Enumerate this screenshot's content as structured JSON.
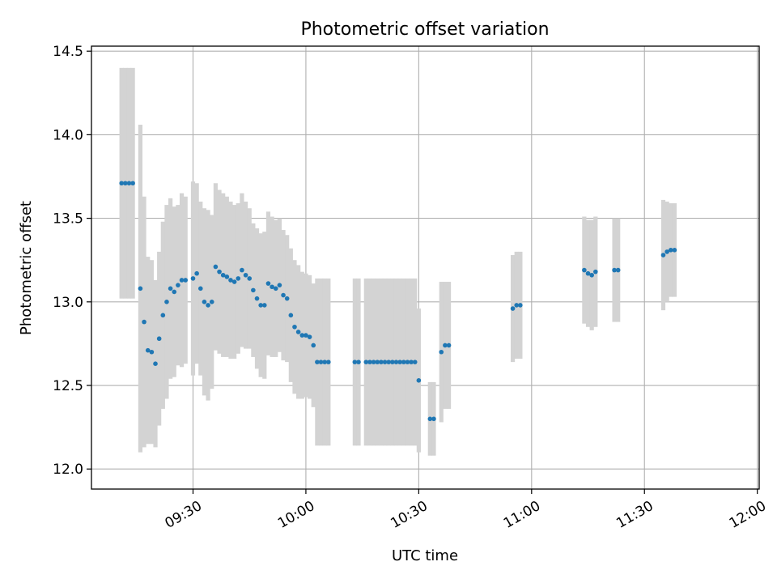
{
  "chart_data": {
    "type": "scatter",
    "title": "Photometric offset variation",
    "xlabel": "UTC time",
    "ylabel": "Photometric offset",
    "x_tick_labels": [
      "09:30",
      "10:00",
      "10:30",
      "11:00",
      "11:30",
      "12:00"
    ],
    "y_tick_labels": [
      "12.0",
      "12.5",
      "13.0",
      "13.5",
      "14.0",
      "14.5"
    ],
    "xlim": [
      "09:03",
      "12:00:30"
    ],
    "ylim": [
      11.88,
      14.53
    ],
    "grid": true,
    "colors": {
      "marker": "#1f77b4",
      "errorbar": "#d3d3d3"
    },
    "series": [
      {
        "x": [
          "09:11",
          "09:12",
          "09:13",
          "09:14",
          "09:16",
          "09:17",
          "09:18",
          "09:19",
          "09:20",
          "09:21",
          "09:22",
          "09:23",
          "09:24",
          "09:25",
          "09:26",
          "09:27",
          "09:28",
          "09:30",
          "09:31",
          "09:32",
          "09:33",
          "09:34",
          "09:35",
          "09:36",
          "09:37",
          "09:38",
          "09:39",
          "09:40",
          "09:41",
          "09:42",
          "09:43",
          "09:44",
          "09:45",
          "09:46",
          "09:47",
          "09:48",
          "09:49",
          "09:50",
          "09:51",
          "09:52",
          "09:53",
          "09:54",
          "09:55",
          "09:56",
          "09:57",
          "09:58",
          "09:59",
          "10:00",
          "10:01",
          "10:02",
          "10:03",
          "10:04",
          "10:05",
          "10:06",
          "10:13",
          "10:14",
          "10:16",
          "10:17",
          "10:18",
          "10:19",
          "10:20",
          "10:21",
          "10:22",
          "10:23",
          "10:24",
          "10:25",
          "10:26",
          "10:27",
          "10:28",
          "10:29",
          "10:30",
          "10:33",
          "10:34",
          "10:36",
          "10:37",
          "10:38",
          "10:55",
          "10:56",
          "10:57",
          "11:14",
          "11:15",
          "11:16",
          "11:17",
          "11:22",
          "11:23",
          "11:35",
          "11:36",
          "11:37",
          "11:38"
        ],
        "y": [
          13.71,
          13.71,
          13.71,
          13.71,
          13.08,
          12.88,
          12.71,
          12.7,
          12.63,
          12.78,
          12.92,
          13.0,
          13.08,
          13.06,
          13.1,
          13.13,
          13.13,
          13.14,
          13.17,
          13.08,
          13.0,
          12.98,
          13.0,
          13.21,
          13.18,
          13.16,
          13.15,
          13.13,
          13.12,
          13.14,
          13.19,
          13.16,
          13.14,
          13.07,
          13.02,
          12.98,
          12.98,
          13.11,
          13.09,
          13.08,
          13.1,
          13.04,
          13.02,
          12.92,
          12.85,
          12.82,
          12.8,
          12.8,
          12.79,
          12.74,
          12.64,
          12.64,
          12.64,
          12.64,
          12.64,
          12.64,
          12.64,
          12.64,
          12.64,
          12.64,
          12.64,
          12.64,
          12.64,
          12.64,
          12.64,
          12.64,
          12.64,
          12.64,
          12.64,
          12.64,
          12.53,
          12.3,
          12.3,
          12.7,
          12.74,
          12.74,
          12.96,
          12.98,
          12.98,
          13.19,
          13.17,
          13.16,
          13.18,
          13.19,
          13.19,
          13.28,
          13.3,
          13.31,
          13.31
        ],
        "yerr": [
          0.69,
          0.69,
          0.69,
          0.69,
          0.98,
          0.75,
          0.56,
          0.55,
          0.5,
          0.52,
          0.56,
          0.58,
          0.54,
          0.51,
          0.48,
          0.52,
          0.5,
          0.58,
          0.54,
          0.52,
          0.56,
          0.57,
          0.52,
          0.5,
          0.49,
          0.49,
          0.48,
          0.47,
          0.46,
          0.45,
          0.46,
          0.44,
          0.42,
          0.4,
          0.42,
          0.43,
          0.44,
          0.43,
          0.42,
          0.41,
          0.4,
          0.39,
          0.38,
          0.4,
          0.4,
          0.4,
          0.38,
          0.37,
          0.37,
          0.37,
          0.5,
          0.5,
          0.5,
          0.5,
          0.5,
          0.5,
          0.5,
          0.5,
          0.5,
          0.5,
          0.5,
          0.5,
          0.5,
          0.5,
          0.5,
          0.5,
          0.5,
          0.5,
          0.5,
          0.5,
          0.43,
          0.22,
          0.22,
          0.42,
          0.38,
          0.38,
          0.32,
          0.32,
          0.32,
          0.32,
          0.32,
          0.33,
          0.33,
          0.31,
          0.31,
          0.33,
          0.3,
          0.28,
          0.28
        ]
      }
    ]
  }
}
